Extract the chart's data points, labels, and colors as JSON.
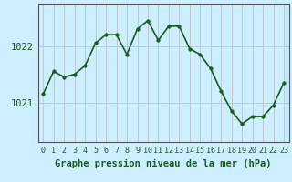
{
  "x": [
    0,
    1,
    2,
    3,
    4,
    5,
    6,
    7,
    8,
    9,
    10,
    11,
    12,
    13,
    14,
    15,
    16,
    17,
    18,
    19,
    20,
    21,
    22,
    23
  ],
  "y": [
    1021.15,
    1021.55,
    1021.45,
    1021.5,
    1021.65,
    1022.05,
    1022.2,
    1022.2,
    1021.85,
    1022.3,
    1022.45,
    1022.1,
    1022.35,
    1022.35,
    1021.95,
    1021.85,
    1021.6,
    1021.2,
    1020.85,
    1020.62,
    1020.75,
    1020.75,
    1020.95,
    1021.35
  ],
  "line_color": "#1a5c1a",
  "marker": "o",
  "marker_size": 2.5,
  "bg_color": "#cceeff",
  "grid_color": "#c0c0c8",
  "xlabel": "Graphe pression niveau de la mer (hPa)",
  "yticks": [
    1021,
    1022
  ],
  "ylim": [
    1020.3,
    1022.75
  ],
  "xlim": [
    -0.5,
    23.5
  ],
  "xtick_labels": [
    "0",
    "1",
    "2",
    "3",
    "4",
    "5",
    "6",
    "7",
    "8",
    "9",
    "10",
    "11",
    "12",
    "13",
    "14",
    "15",
    "16",
    "17",
    "18",
    "19",
    "20",
    "21",
    "22",
    "23"
  ],
  "xlabel_fontsize": 7.5,
  "ytick_fontsize": 7.5,
  "xtick_fontsize": 6,
  "line_width": 1.2
}
